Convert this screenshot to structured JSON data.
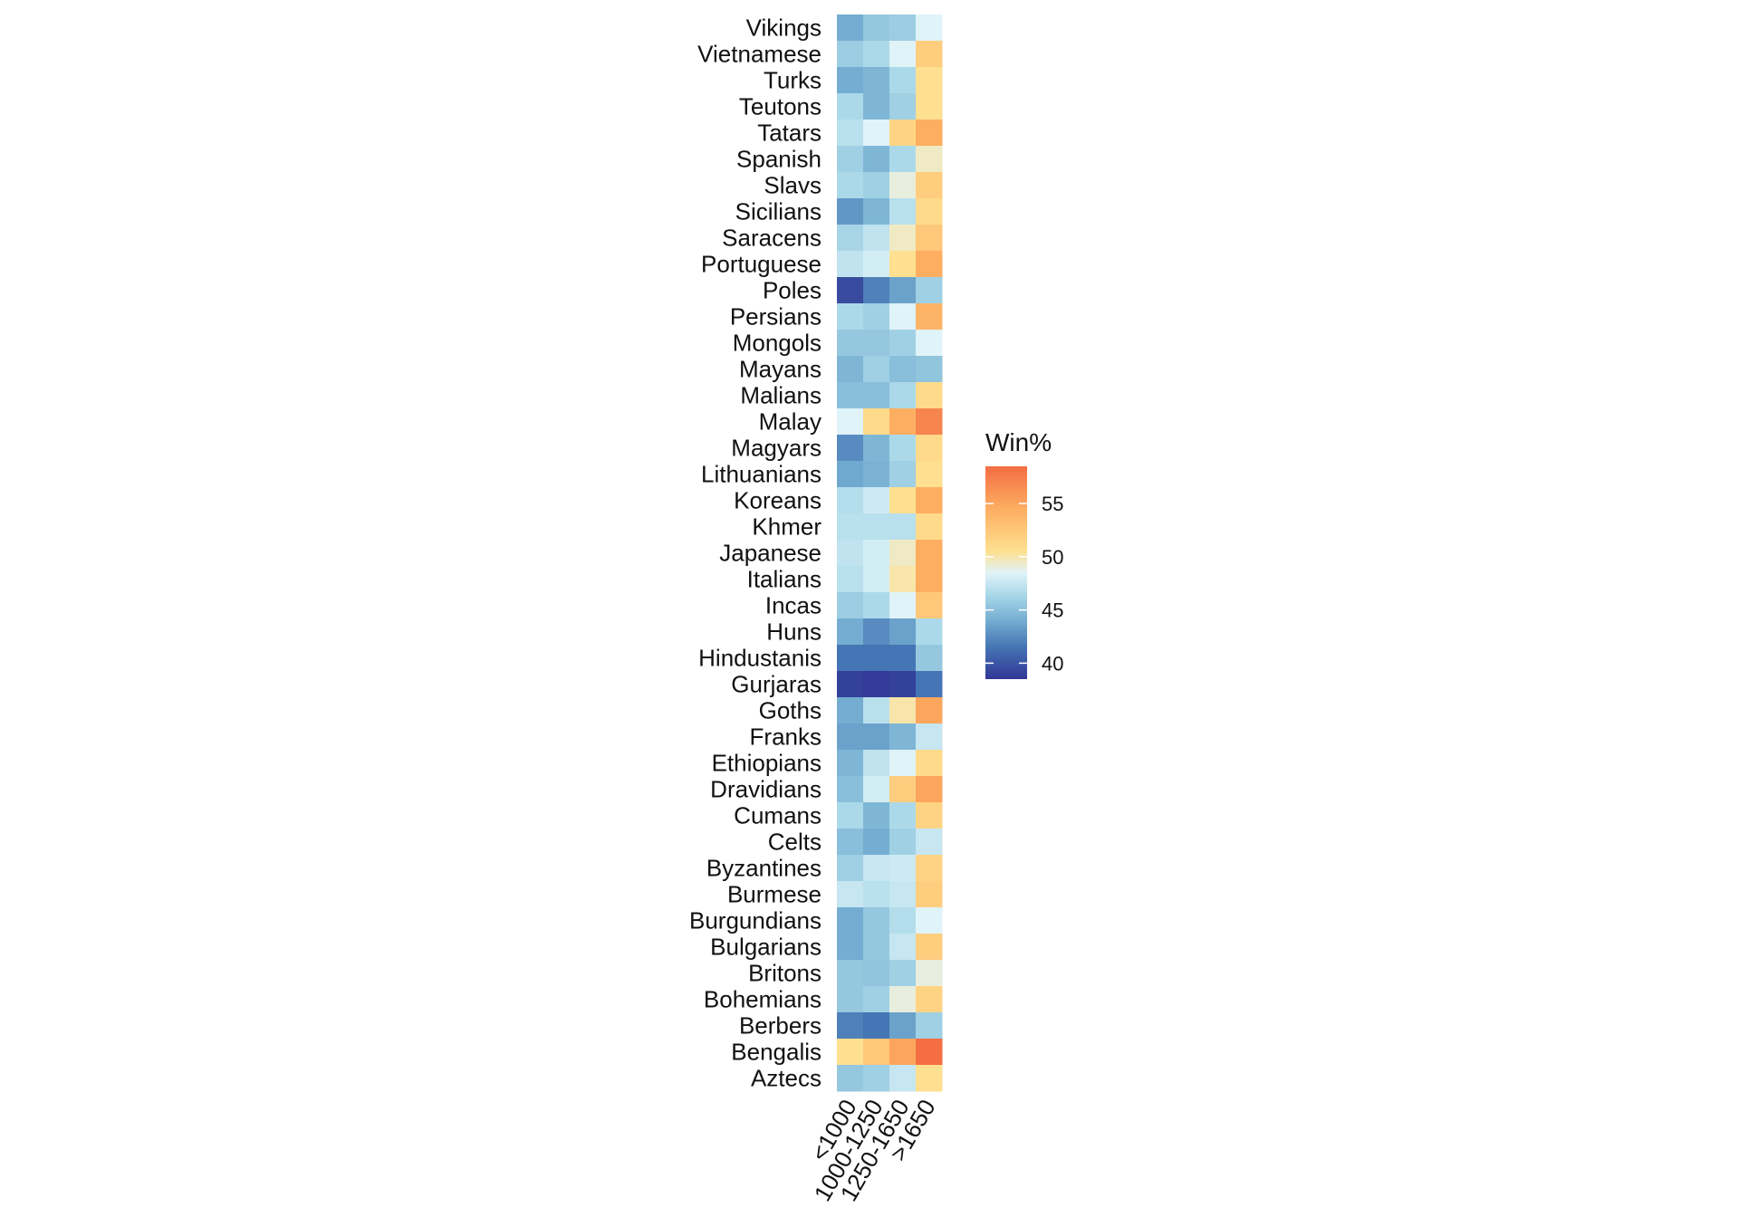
{
  "chart_data": {
    "type": "heatmap",
    "title": "",
    "xlabel": "",
    "ylabel": "",
    "x_categories": [
      "<1000",
      "1000-1250",
      "1250-1650",
      ">1650"
    ],
    "y_categories": [
      "Vikings",
      "Vietnamese",
      "Turks",
      "Teutons",
      "Tatars",
      "Spanish",
      "Slavs",
      "Sicilians",
      "Saracens",
      "Portuguese",
      "Poles",
      "Persians",
      "Mongols",
      "Mayans",
      "Malians",
      "Malay",
      "Magyars",
      "Lithuanians",
      "Koreans",
      "Khmer",
      "Japanese",
      "Italians",
      "Incas",
      "Huns",
      "Hindustanis",
      "Gurjaras",
      "Goths",
      "Franks",
      "Ethiopians",
      "Dravidians",
      "Cumans",
      "Celts",
      "Byzantines",
      "Burmese",
      "Burgundians",
      "Bulgarians",
      "Britons",
      "Bohemians",
      "Berbers",
      "Bengalis",
      "Aztecs"
    ],
    "values": [
      [
        44.0,
        45.5,
        45.8,
        48.5
      ],
      [
        45.8,
        46.5,
        48.5,
        52.0
      ],
      [
        44.0,
        44.5,
        46.5,
        50.5
      ],
      [
        46.5,
        44.5,
        46.0,
        50.5
      ],
      [
        47.0,
        48.5,
        51.5,
        54.5
      ],
      [
        46.0,
        44.5,
        46.5,
        49.5
      ],
      [
        46.5,
        46.0,
        49.0,
        52.0
      ],
      [
        43.0,
        44.5,
        47.0,
        51.0
      ],
      [
        46.3,
        47.3,
        49.5,
        52.5
      ],
      [
        47.3,
        48.0,
        50.5,
        54.5
      ],
      [
        39.5,
        42.0,
        43.5,
        46.0
      ],
      [
        46.5,
        46.0,
        48.5,
        54.0
      ],
      [
        45.5,
        45.5,
        46.0,
        48.5
      ],
      [
        44.5,
        46.0,
        45.0,
        45.3
      ],
      [
        45.0,
        45.0,
        46.5,
        51.0
      ],
      [
        48.5,
        51.0,
        54.5,
        57.0
      ],
      [
        42.5,
        44.5,
        46.5,
        51.0
      ],
      [
        43.8,
        44.3,
        46.0,
        50.5
      ],
      [
        46.8,
        47.8,
        50.5,
        54.5
      ],
      [
        47.0,
        47.0,
        47.0,
        51.0
      ],
      [
        47.3,
        48.0,
        49.5,
        54.5
      ],
      [
        47.0,
        48.0,
        50.0,
        54.5
      ],
      [
        45.8,
        46.5,
        48.5,
        52.5
      ],
      [
        44.0,
        42.5,
        43.5,
        46.5
      ],
      [
        41.5,
        41.5,
        41.5,
        45.5
      ],
      [
        39.0,
        38.8,
        39.0,
        41.5
      ],
      [
        44.0,
        47.0,
        50.0,
        55.0
      ],
      [
        43.5,
        43.5,
        44.5,
        47.5
      ],
      [
        44.5,
        47.3,
        48.5,
        51.0
      ],
      [
        45.0,
        48.0,
        52.0,
        55.0
      ],
      [
        46.5,
        44.5,
        46.5,
        51.5
      ],
      [
        45.0,
        44.0,
        46.0,
        47.5
      ],
      [
        46.0,
        47.5,
        47.8,
        51.5
      ],
      [
        47.5,
        47.0,
        47.5,
        52.0
      ],
      [
        44.0,
        45.5,
        46.8,
        48.5
      ],
      [
        44.0,
        45.5,
        47.5,
        52.0
      ],
      [
        45.5,
        45.3,
        46.0,
        49.0
      ],
      [
        45.5,
        46.0,
        49.0,
        51.5
      ],
      [
        42.0,
        41.5,
        43.5,
        46.0
      ],
      [
        50.5,
        52.5,
        55.0,
        58.5
      ],
      [
        45.5,
        46.0,
        47.5,
        50.5
      ]
    ],
    "legend": {
      "title": "Win%",
      "position": "right",
      "min": 38.5,
      "max": 58.5,
      "ticks": [
        {
          "value": 40,
          "label": "40"
        },
        {
          "value": 45,
          "label": "45"
        },
        {
          "value": 50,
          "label": "50"
        },
        {
          "value": 55,
          "label": "55"
        }
      ]
    },
    "color_scale": {
      "stops": [
        {
          "value": 38.5,
          "color": "#313695"
        },
        {
          "value": 41.5,
          "color": "#4575b4"
        },
        {
          "value": 44.0,
          "color": "#74add1"
        },
        {
          "value": 46.5,
          "color": "#abd9e9"
        },
        {
          "value": 48.5,
          "color": "#e0f3f8"
        },
        {
          "value": 50.5,
          "color": "#fee090"
        },
        {
          "value": 54.5,
          "color": "#fdae61"
        },
        {
          "value": 58.5,
          "color": "#f46d43"
        }
      ]
    },
    "grid": false
  }
}
